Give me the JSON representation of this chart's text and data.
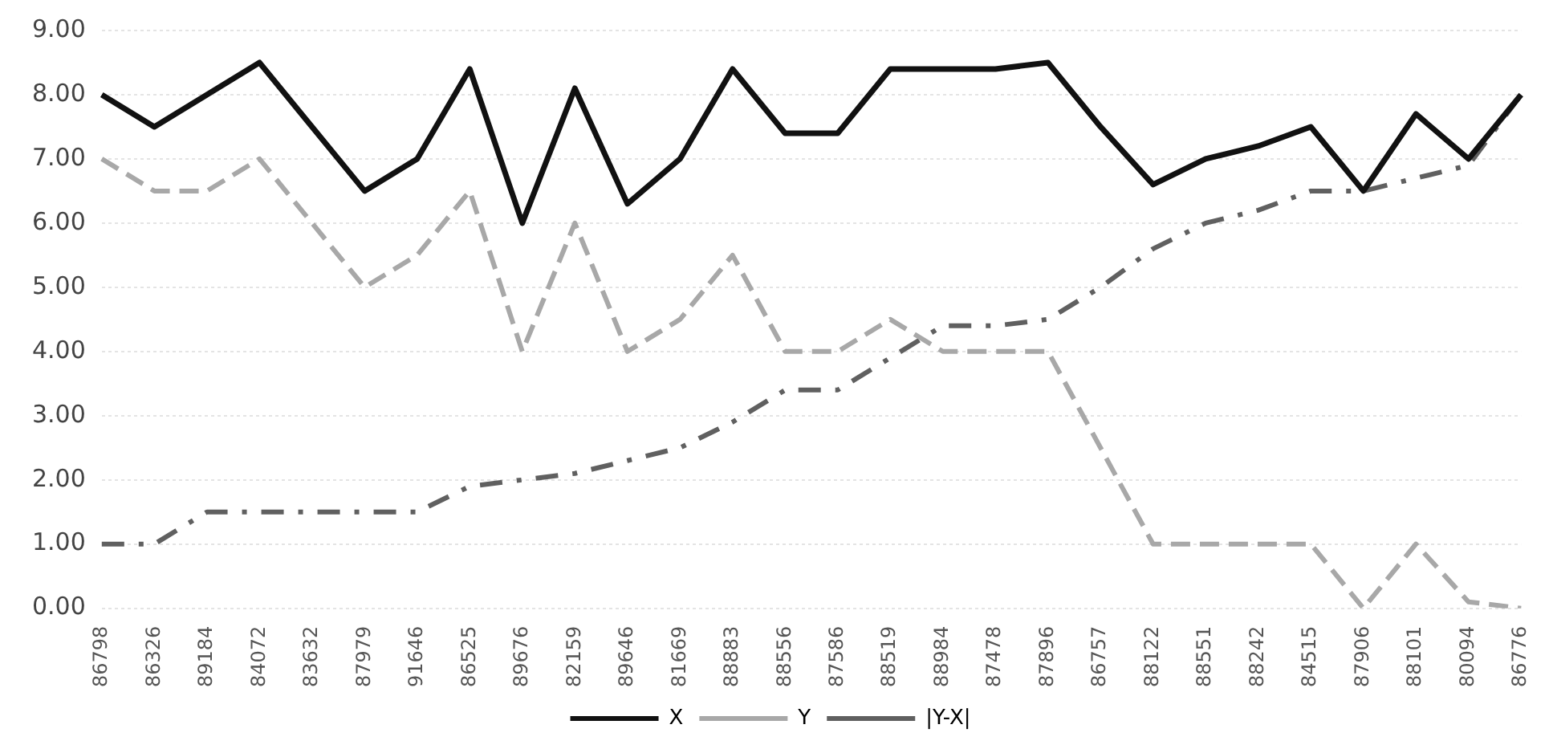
{
  "chart_data": {
    "type": "line",
    "categories": [
      "86798",
      "86326",
      "89184",
      "84072",
      "83632",
      "87979",
      "91646",
      "86525",
      "89676",
      "82159",
      "89646",
      "81669",
      "88883",
      "88556",
      "87586",
      "88519",
      "88984",
      "87478",
      "87896",
      "86757",
      "88122",
      "88551",
      "88242",
      "84515",
      "87906",
      "88101",
      "80094",
      "86776"
    ],
    "series": [
      {
        "name": "X",
        "color": "#111111",
        "line_style": "solid",
        "values": [
          8.0,
          7.5,
          8.0,
          8.5,
          7.5,
          6.5,
          7.0,
          8.4,
          6.0,
          8.1,
          6.3,
          7.0,
          8.4,
          7.4,
          7.4,
          8.4,
          8.4,
          8.4,
          8.5,
          7.5,
          6.6,
          7.0,
          7.2,
          7.5,
          6.5,
          7.7,
          7.0,
          8.0
        ]
      },
      {
        "name": "Y",
        "color": "#a8a8a8",
        "line_style": "dashed",
        "values": [
          7.0,
          6.5,
          6.5,
          7.0,
          6.0,
          5.0,
          5.5,
          6.5,
          4.0,
          6.0,
          4.0,
          4.5,
          5.5,
          4.0,
          4.0,
          4.5,
          4.0,
          4.0,
          4.0,
          2.5,
          1.0,
          1.0,
          1.0,
          1.0,
          0.0,
          1.0,
          0.1,
          0.0
        ]
      },
      {
        "name": "|Y-X|",
        "color": "#606060",
        "line_style": "dotted",
        "values": [
          1.0,
          1.0,
          1.5,
          1.5,
          1.5,
          1.5,
          1.5,
          1.9,
          2.0,
          2.1,
          2.3,
          2.5,
          2.9,
          3.4,
          3.4,
          3.9,
          4.4,
          4.4,
          4.5,
          5.0,
          5.6,
          6.0,
          6.2,
          6.5,
          6.5,
          6.7,
          6.9,
          8.0
        ]
      }
    ],
    "ylim": [
      0,
      9
    ],
    "yticks": [
      {
        "value": 0,
        "label": "0.00"
      },
      {
        "value": 1,
        "label": "1.00"
      },
      {
        "value": 2,
        "label": "2.00"
      },
      {
        "value": 3,
        "label": "3.00"
      },
      {
        "value": 4,
        "label": "4.00"
      },
      {
        "value": 5,
        "label": "5.00"
      },
      {
        "value": 6,
        "label": "6.00"
      },
      {
        "value": 7,
        "label": "7.00"
      },
      {
        "value": 8,
        "label": "8.00"
      },
      {
        "value": 9,
        "label": "9.00"
      }
    ],
    "grid": "y",
    "legend": "bottom",
    "marker": "none"
  }
}
